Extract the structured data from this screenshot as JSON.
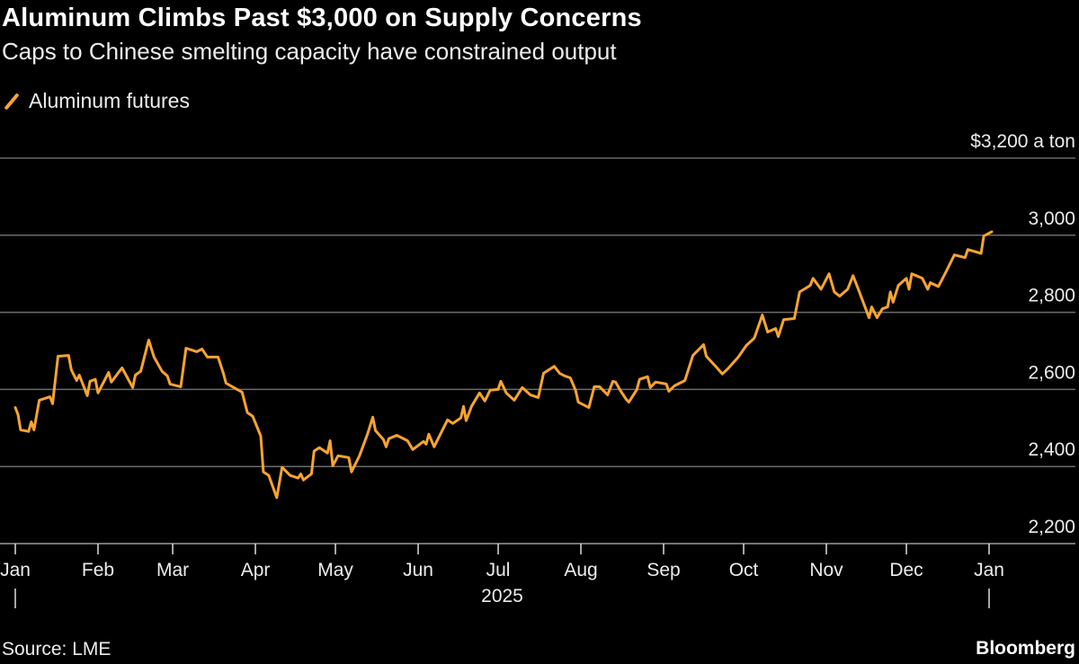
{
  "chart_data": {
    "type": "line",
    "title": "Aluminum Climbs Past $3,000 on Supply Concerns",
    "subtitle": "Caps to Chinese smelting capacity have constrained output",
    "source": "Source: LME",
    "brand": "Bloomberg",
    "ylabel": "$3,200 a ton",
    "ylim": [
      2200,
      3200
    ],
    "yticks": [
      2200,
      2400,
      2600,
      2800,
      3000
    ],
    "ytick_labels": [
      "2,200",
      "2,400",
      "2,600",
      "2,800",
      "3,000"
    ],
    "xlim": [
      "2025-01-01",
      "2026-01-01"
    ],
    "xtick_labels": [
      "Jan",
      "Feb",
      "Mar",
      "Apr",
      "May",
      "Jun",
      "Jul",
      "Aug",
      "Sep",
      "Oct",
      "Nov",
      "Dec",
      "Jan"
    ],
    "xtick_dates": [
      "2025-01-01",
      "2025-02-01",
      "2025-03-01",
      "2025-04-01",
      "2025-05-01",
      "2025-06-01",
      "2025-07-01",
      "2025-08-01",
      "2025-09-01",
      "2025-10-01",
      "2025-11-01",
      "2025-12-01",
      "2026-01-01"
    ],
    "year_label": "2025",
    "grid": true,
    "legend_position": "top-left",
    "series": [
      {
        "name": "Aluminum futures",
        "color": "#f7a430",
        "points": [
          [
            "2025-01-01",
            2553
          ],
          [
            "2025-01-02",
            2535
          ],
          [
            "2025-01-03",
            2495
          ],
          [
            "2025-01-06",
            2491
          ],
          [
            "2025-01-07",
            2516
          ],
          [
            "2025-01-08",
            2495
          ],
          [
            "2025-01-10",
            2572
          ],
          [
            "2025-01-14",
            2581
          ],
          [
            "2025-01-15",
            2563
          ],
          [
            "2025-01-17",
            2686
          ],
          [
            "2025-01-21",
            2688
          ],
          [
            "2025-01-22",
            2651
          ],
          [
            "2025-01-24",
            2623
          ],
          [
            "2025-01-25",
            2637
          ],
          [
            "2025-01-28",
            2584
          ],
          [
            "2025-01-29",
            2621
          ],
          [
            "2025-01-31",
            2626
          ],
          [
            "2025-02-01",
            2591
          ],
          [
            "2025-02-05",
            2644
          ],
          [
            "2025-02-06",
            2619
          ],
          [
            "2025-02-10",
            2656
          ],
          [
            "2025-02-14",
            2605
          ],
          [
            "2025-02-15",
            2637
          ],
          [
            "2025-02-17",
            2647
          ],
          [
            "2025-02-20",
            2728
          ],
          [
            "2025-02-22",
            2684
          ],
          [
            "2025-02-25",
            2647
          ],
          [
            "2025-02-27",
            2635
          ],
          [
            "2025-02-28",
            2614
          ],
          [
            "2025-03-04",
            2607
          ],
          [
            "2025-03-06",
            2707
          ],
          [
            "2025-03-10",
            2698
          ],
          [
            "2025-03-12",
            2705
          ],
          [
            "2025-03-14",
            2684
          ],
          [
            "2025-03-18",
            2684
          ],
          [
            "2025-03-20",
            2642
          ],
          [
            "2025-03-21",
            2616
          ],
          [
            "2025-03-27",
            2593
          ],
          [
            "2025-03-29",
            2540
          ],
          [
            "2025-03-31",
            2530
          ],
          [
            "2025-04-03",
            2479
          ],
          [
            "2025-04-04",
            2386
          ],
          [
            "2025-04-06",
            2377
          ],
          [
            "2025-04-09",
            2319
          ],
          [
            "2025-04-11",
            2398
          ],
          [
            "2025-04-14",
            2377
          ],
          [
            "2025-04-17",
            2370
          ],
          [
            "2025-04-18",
            2381
          ],
          [
            "2025-04-19",
            2365
          ],
          [
            "2025-04-22",
            2381
          ],
          [
            "2025-04-23",
            2440
          ],
          [
            "2025-04-25",
            2449
          ],
          [
            "2025-04-28",
            2435
          ],
          [
            "2025-04-29",
            2467
          ],
          [
            "2025-04-30",
            2402
          ],
          [
            "2025-05-02",
            2428
          ],
          [
            "2025-05-06",
            2423
          ],
          [
            "2025-05-07",
            2386
          ],
          [
            "2025-05-10",
            2428
          ],
          [
            "2025-05-13",
            2484
          ],
          [
            "2025-05-15",
            2528
          ],
          [
            "2025-05-16",
            2493
          ],
          [
            "2025-05-19",
            2470
          ],
          [
            "2025-05-20",
            2451
          ],
          [
            "2025-05-21",
            2472
          ],
          [
            "2025-05-24",
            2481
          ],
          [
            "2025-05-28",
            2467
          ],
          [
            "2025-05-30",
            2444
          ],
          [
            "2025-06-03",
            2465
          ],
          [
            "2025-06-04",
            2458
          ],
          [
            "2025-06-05",
            2484
          ],
          [
            "2025-06-07",
            2451
          ],
          [
            "2025-06-10",
            2493
          ],
          [
            "2025-06-12",
            2521
          ],
          [
            "2025-06-14",
            2512
          ],
          [
            "2025-06-17",
            2526
          ],
          [
            "2025-06-18",
            2556
          ],
          [
            "2025-06-19",
            2519
          ],
          [
            "2025-06-21",
            2556
          ],
          [
            "2025-06-24",
            2591
          ],
          [
            "2025-06-26",
            2570
          ],
          [
            "2025-06-28",
            2598
          ],
          [
            "2025-07-01",
            2600
          ],
          [
            "2025-07-02",
            2621
          ],
          [
            "2025-07-04",
            2591
          ],
          [
            "2025-07-07",
            2572
          ],
          [
            "2025-07-10",
            2605
          ],
          [
            "2025-07-13",
            2586
          ],
          [
            "2025-07-16",
            2579
          ],
          [
            "2025-07-18",
            2642
          ],
          [
            "2025-07-22",
            2660
          ],
          [
            "2025-07-24",
            2642
          ],
          [
            "2025-07-26",
            2635
          ],
          [
            "2025-07-28",
            2630
          ],
          [
            "2025-07-30",
            2598
          ],
          [
            "2025-07-31",
            2567
          ],
          [
            "2025-08-04",
            2553
          ],
          [
            "2025-08-06",
            2607
          ],
          [
            "2025-08-08",
            2607
          ],
          [
            "2025-08-11",
            2586
          ],
          [
            "2025-08-13",
            2621
          ],
          [
            "2025-08-14",
            2619
          ],
          [
            "2025-08-16",
            2595
          ],
          [
            "2025-08-18",
            2574
          ],
          [
            "2025-08-19",
            2567
          ],
          [
            "2025-08-22",
            2600
          ],
          [
            "2025-08-23",
            2626
          ],
          [
            "2025-08-26",
            2633
          ],
          [
            "2025-08-27",
            2605
          ],
          [
            "2025-08-29",
            2619
          ],
          [
            "2025-09-02",
            2614
          ],
          [
            "2025-09-03",
            2595
          ],
          [
            "2025-09-05",
            2609
          ],
          [
            "2025-09-09",
            2623
          ],
          [
            "2025-09-12",
            2688
          ],
          [
            "2025-09-16",
            2716
          ],
          [
            "2025-09-17",
            2686
          ],
          [
            "2025-09-21",
            2656
          ],
          [
            "2025-09-23",
            2640
          ],
          [
            "2025-09-25",
            2653
          ],
          [
            "2025-09-29",
            2684
          ],
          [
            "2025-10-02",
            2714
          ],
          [
            "2025-10-05",
            2733
          ],
          [
            "2025-10-08",
            2793
          ],
          [
            "2025-10-10",
            2749
          ],
          [
            "2025-10-13",
            2758
          ],
          [
            "2025-10-14",
            2737
          ],
          [
            "2025-10-16",
            2781
          ],
          [
            "2025-10-20",
            2784
          ],
          [
            "2025-10-22",
            2853
          ],
          [
            "2025-10-26",
            2870
          ],
          [
            "2025-10-27",
            2888
          ],
          [
            "2025-10-30",
            2860
          ],
          [
            "2025-11-02",
            2900
          ],
          [
            "2025-11-04",
            2853
          ],
          [
            "2025-11-06",
            2842
          ],
          [
            "2025-11-09",
            2860
          ],
          [
            "2025-11-11",
            2895
          ],
          [
            "2025-11-13",
            2860
          ],
          [
            "2025-11-17",
            2786
          ],
          [
            "2025-11-18",
            2814
          ],
          [
            "2025-11-20",
            2786
          ],
          [
            "2025-11-22",
            2809
          ],
          [
            "2025-11-24",
            2814
          ],
          [
            "2025-11-25",
            2853
          ],
          [
            "2025-11-26",
            2826
          ],
          [
            "2025-11-28",
            2870
          ],
          [
            "2025-12-01",
            2888
          ],
          [
            "2025-12-02",
            2860
          ],
          [
            "2025-12-03",
            2900
          ],
          [
            "2025-12-07",
            2888
          ],
          [
            "2025-12-09",
            2860
          ],
          [
            "2025-12-10",
            2877
          ],
          [
            "2025-12-13",
            2867
          ],
          [
            "2025-12-16",
            2907
          ],
          [
            "2025-12-19",
            2949
          ],
          [
            "2025-12-23",
            2942
          ],
          [
            "2025-12-24",
            2963
          ],
          [
            "2025-12-29",
            2953
          ],
          [
            "2025-12-30",
            2998
          ],
          [
            "2026-01-02",
            3009
          ]
        ]
      }
    ]
  }
}
